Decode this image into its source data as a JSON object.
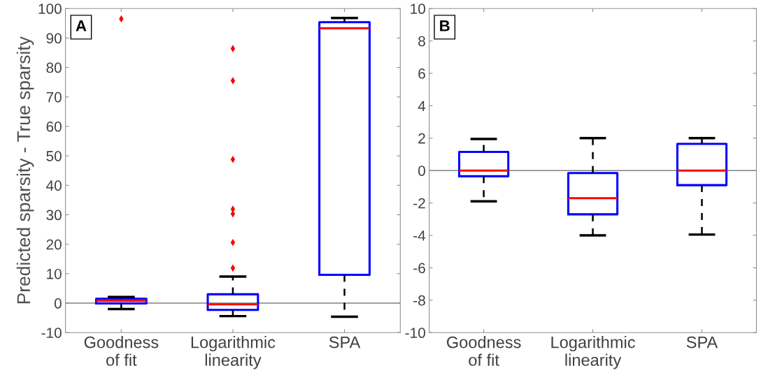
{
  "chart_data": [
    {
      "type": "box",
      "ylabel": "Predicted sparsity - True sparsity",
      "annotations": [
        "A"
      ],
      "categories": [
        "Goodness\nof fit",
        "Logarithmic\nlinearity",
        "SPA"
      ],
      "boxes": [
        {
          "low": -2,
          "q1": -0.1,
          "median": 0.8,
          "q3": 1.5,
          "high": 2.1,
          "outliers": [
            96.5
          ]
        },
        {
          "low": -4.4,
          "q1": -2.3,
          "median": -0.4,
          "q3": 3,
          "high": 9,
          "outliers": [
            86.4,
            75.5,
            48.8,
            31.9,
            30.3,
            20.6,
            11.9
          ]
        },
        {
          "low": -4.6,
          "q1": 9.6,
          "median": 93.3,
          "q3": 95.4,
          "high": 96.8
        }
      ],
      "ylim": [
        -10,
        100
      ],
      "yticks": [
        -10,
        0,
        10,
        20,
        30,
        40,
        50,
        60,
        70,
        80,
        90,
        100
      ],
      "ref_lines": [
        {
          "axis": "y",
          "value": 0,
          "color": "#808080"
        }
      ],
      "line_style": "dashed",
      "grid": false,
      "legend": false
    },
    {
      "type": "box",
      "annotations": [
        "B"
      ],
      "categories": [
        "Goodness\nof fit",
        "Logarithmic\nlinearity",
        "SPA"
      ],
      "boxes": [
        {
          "low": -1.9,
          "q1": -0.35,
          "median": 0,
          "q3": 1.15,
          "high": 1.95
        },
        {
          "low": -4,
          "q1": -2.7,
          "median": -1.7,
          "q3": -0.15,
          "high": 2
        },
        {
          "low": -3.95,
          "q1": -0.9,
          "median": 0,
          "q3": 1.65,
          "high": 2
        }
      ],
      "ylim": [
        -10,
        10
      ],
      "yticks": [
        -10,
        -8,
        -6,
        -4,
        -2,
        0,
        2,
        4,
        6,
        8,
        10
      ],
      "ref_lines": [
        {
          "axis": "y",
          "value": 0,
          "color": "#808080"
        }
      ],
      "line_style": "dashed",
      "grid": false,
      "legend": false
    }
  ]
}
